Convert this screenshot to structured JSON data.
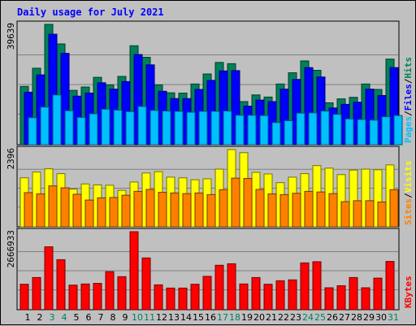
{
  "chart_data": {
    "type": "bar",
    "title": "Daily usage for July 2021",
    "categories": [
      "1",
      "2",
      "3",
      "4",
      "5",
      "6",
      "7",
      "8",
      "9",
      "10",
      "11",
      "12",
      "13",
      "14",
      "15",
      "16",
      "17",
      "18",
      "19",
      "20",
      "21",
      "22",
      "23",
      "24",
      "25",
      "26",
      "27",
      "28",
      "29",
      "30",
      "31"
    ],
    "weekend_days": [
      "3",
      "4",
      "10",
      "11",
      "17",
      "18",
      "24",
      "25",
      "31"
    ],
    "panels": [
      {
        "name": "hits-files-pages",
        "max_label": "39639",
        "ymax": 39639,
        "legend": [
          "Pages",
          "/",
          "Files",
          "/",
          "Hits"
        ],
        "legend_colors": [
          "#00c0ff",
          "#000000",
          "#0000ff",
          "#000000",
          "#00805c"
        ],
        "series": [
          {
            "name": "Hits",
            "color": "#00805c",
            "values": [
              19200,
              25200,
              39639,
              33200,
              17900,
              19000,
              22200,
              19700,
              22500,
              32600,
              28800,
              19700,
              17100,
              17000,
              20000,
              23300,
              27100,
              26700,
              14200,
              16400,
              15700,
              20000,
              23700,
              27600,
              24500,
              13800,
              15100,
              15600,
              20000,
              18200,
              28200
            ]
          },
          {
            "name": "Files",
            "color": "#0000ff",
            "values": [
              17300,
              23000,
              36400,
              30100,
              16000,
              17000,
              20400,
              18300,
              20800,
              29700,
              26300,
              17600,
              15200,
              15200,
              18200,
              21200,
              24300,
              24400,
              12700,
              14700,
              14200,
              18300,
              21500,
              25400,
              22300,
              12100,
              13300,
              14000,
              18300,
              16200,
              25400
            ]
          },
          {
            "name": "Pages",
            "color": "#00c0ff",
            "values": [
              8900,
              12400,
              16400,
              11200,
              9000,
              10200,
              11700,
              11400,
              10900,
              12600,
              11300,
              11100,
              11000,
              10700,
              11000,
              11000,
              11100,
              9700,
              9700,
              9600,
              7300,
              7900,
              10400,
              10500,
              11100,
              10000,
              8500,
              8300,
              8100,
              9200,
              9600
            ]
          }
        ]
      },
      {
        "name": "visits-sites",
        "max_label": "2396",
        "ymax": 2396,
        "legend": [
          "Sites",
          "/",
          "Visits"
        ],
        "legend_colors": [
          "#ff8000",
          "#000000",
          "#ffff00"
        ],
        "series": [
          {
            "name": "Visits",
            "color": "#ffff00",
            "values": [
              1520,
              1700,
              1800,
              1650,
              1170,
              1330,
              1300,
              1290,
              1130,
              1390,
              1670,
              1710,
              1540,
              1520,
              1460,
              1490,
              1790,
              2396,
              2300,
              1690,
              1640,
              1370,
              1540,
              1650,
              1900,
              1820,
              1620,
              1760,
              1790,
              1770,
              1920
            ]
          },
          {
            "name": "Sites",
            "color": "#ff8000",
            "values": [
              1060,
              1020,
              1270,
              1210,
              1010,
              830,
              900,
              910,
              980,
              1100,
              1160,
              1070,
              1050,
              1030,
              1050,
              1000,
              1150,
              1510,
              1500,
              1160,
              1020,
              1000,
              1040,
              1100,
              1080,
              1030,
              780,
              810,
              810,
              770,
              1150
            ]
          }
        ]
      },
      {
        "name": "kbytes",
        "max_label": "2666933",
        "ymax": 2666933,
        "legend": [
          "KBytes"
        ],
        "legend_colors": [
          "#ff0000"
        ],
        "series": [
          {
            "name": "KBytes",
            "color": "#ff0000",
            "values": [
              870000,
              1100000,
              2150000,
              1710000,
              840000,
              880000,
              900000,
              1300000,
              1130000,
              2666933,
              1770000,
              850000,
              740000,
              740000,
              870000,
              1140000,
              1520000,
              1570000,
              880000,
              1100000,
              870000,
              990000,
              1020000,
              1600000,
              1640000,
              750000,
              820000,
              1100000,
              750000,
              1080000,
              1650000
            ]
          }
        ]
      }
    ]
  }
}
